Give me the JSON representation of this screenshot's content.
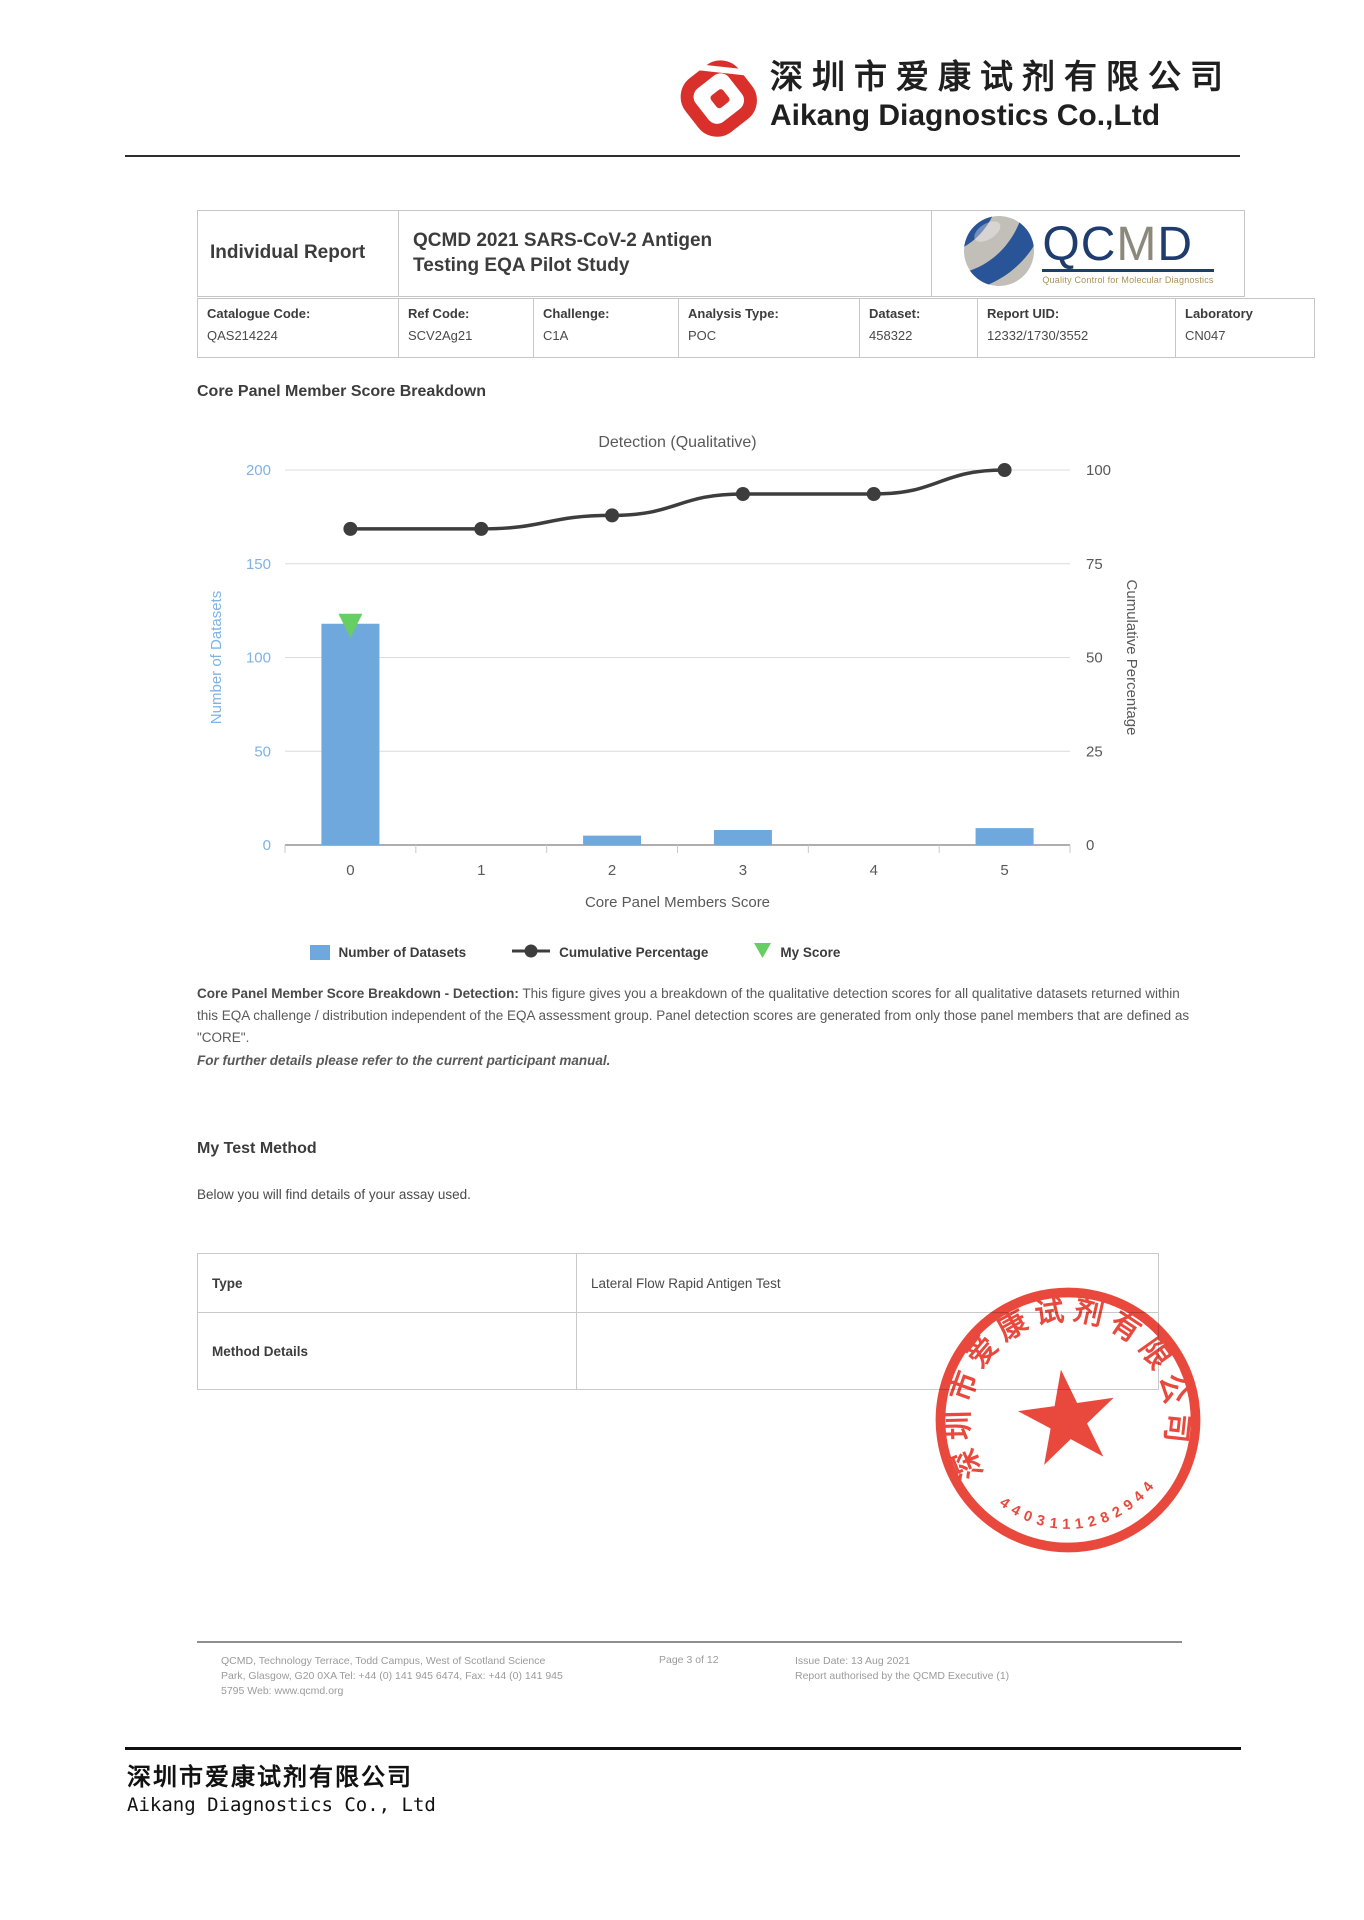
{
  "page_header": {
    "company_cn": "深圳市爱康试剂有限公司",
    "company_en": "Aikang Diagnostics Co.,Ltd"
  },
  "report_header": {
    "report_type": "Individual Report",
    "title": "QCMD 2021 SARS-CoV-2 Antigen Testing EQA Pilot Study",
    "qcmd_logo": {
      "letters_qc": "QC",
      "letters_m": "M",
      "letters_d": "D",
      "tagline": "Quality Control for Molecular Diagnostics"
    },
    "meta": [
      {
        "label": "Catalogue Code:",
        "value": "QAS214224"
      },
      {
        "label": "Ref Code:",
        "value": "SCV2Ag21"
      },
      {
        "label": "Challenge:",
        "value": "C1A"
      },
      {
        "label": "Analysis Type:",
        "value": "POC"
      },
      {
        "label": "Dataset:",
        "value": "458322"
      },
      {
        "label": "Report UID:",
        "value": "12332/1730/3552"
      },
      {
        "label": "Laboratory",
        "value": "CN047"
      }
    ]
  },
  "section_heading": "Core Panel Member Score Breakdown",
  "chart_data": {
    "type": "bar",
    "title": "Detection (Qualitative)",
    "categories": [
      "0",
      "1",
      "2",
      "3",
      "4",
      "5"
    ],
    "series": [
      {
        "name": "Number of Datasets",
        "type": "bar",
        "axis": "left",
        "color": "#6FA8DC",
        "values": [
          118,
          0,
          5,
          8,
          0,
          9
        ]
      },
      {
        "name": "Cumulative Percentage",
        "type": "line",
        "axis": "right",
        "color": "#3D3D3D",
        "values": [
          84.3,
          84.3,
          87.9,
          93.6,
          93.6,
          100
        ]
      },
      {
        "name": "My Score",
        "type": "marker",
        "color": "#67CE63",
        "category": "0",
        "value": 118
      }
    ],
    "xlabel": "Core Panel Members Score",
    "left_axis": {
      "label": "Number of Datasets",
      "ticks": [
        0,
        50,
        100,
        150,
        200
      ],
      "max": 200,
      "color": "#7FB2E5"
    },
    "right_axis": {
      "label": "Cumulative Percentage",
      "ticks": [
        0,
        25,
        50,
        75,
        100
      ],
      "max": 100,
      "color": "#595959"
    },
    "grid": true,
    "legend_position": "bottom"
  },
  "caption": {
    "lead": "Core Panel Member Score Breakdown - Detection:",
    "body": "This figure gives you a breakdown of the qualitative detection scores for all qualitative datasets returned within this EQA challenge / distribution independent of the EQA assessment group. Panel detection scores are generated from only those panel members that are defined as \"CORE\".",
    "note": "For further details please refer to the current participant manual."
  },
  "my_test_method": {
    "heading": "My Test Method",
    "intro": "Below you will find details of your assay used.",
    "rows": [
      {
        "label": "Type",
        "value": "Lateral Flow Rapid Antigen Test"
      },
      {
        "label": "Method Details",
        "value": ""
      }
    ]
  },
  "stamp": {
    "company": "深圳市爱康试剂有限公司",
    "serial": "4403111282944"
  },
  "report_footer": {
    "address": "QCMD, Technology Terrace, Todd Campus, West of Scotland Science Park, Glasgow, G20 0XA Tel: +44 (0) 141 945 6474, Fax: +44 (0) 141 945 5795 Web: www.qcmd.org",
    "page": "Page 3 of 12",
    "issue_date": "Issue Date: 13 Aug 2021",
    "authorised": "Report authorised by the QCMD Executive (1)"
  },
  "page_footer": {
    "company_cn": "深圳市爱康试剂有限公司",
    "company_en": "Aikang Diagnostics Co., Ltd"
  },
  "colors": {
    "bar_blue": "#6FA8DC",
    "line_dark": "#3D3D3D",
    "marker_green": "#67CE63",
    "stamp_red": "#E8382C",
    "logo_red": "#D9302C",
    "qcmd_blue": "#1E3C6E",
    "qcmd_gold": "#AB9254"
  }
}
